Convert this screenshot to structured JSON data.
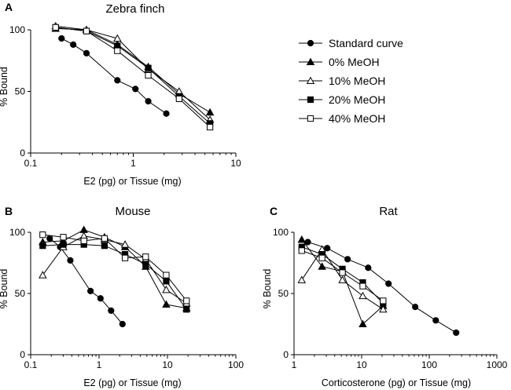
{
  "legend": [
    {
      "label": "Standard curve",
      "marker": "filled-circle"
    },
    {
      "label": "0% MeOH",
      "marker": "filled-triangle"
    },
    {
      "label": "10% MeOH",
      "marker": "open-triangle"
    },
    {
      "label": "20% MeOH",
      "marker": "filled-square"
    },
    {
      "label": "40% MeOH",
      "marker": "open-square"
    }
  ],
  "chart_data": [
    {
      "id": "A",
      "letter": "A",
      "type": "scatter",
      "xscale": "log",
      "title": "Zebra finch",
      "xlabel": "E2 (pg) or Tissue (mg)",
      "ylabel": "% Bound",
      "xlim": [
        0.1,
        10
      ],
      "ylim": [
        0,
        100
      ],
      "xticks": [
        {
          "v": 0.1,
          "label": "0.1"
        },
        {
          "v": 1,
          "label": "1"
        },
        {
          "v": 10,
          "label": "10"
        }
      ],
      "yticks": [
        {
          "v": 0,
          "label": "0"
        },
        {
          "v": 50,
          "label": "50"
        },
        {
          "v": 100,
          "label": "100"
        }
      ],
      "series": [
        {
          "name": "Standard curve",
          "marker": "filled-circle",
          "x": [
            0.2,
            0.26,
            0.35,
            0.7,
            1.05,
            1.4,
            2.1
          ],
          "y": [
            93,
            88,
            81,
            59,
            52,
            42,
            32
          ]
        },
        {
          "name": "0% MeOH",
          "marker": "filled-triangle",
          "x": [
            0.175,
            0.35,
            0.7,
            1.4,
            2.8,
            5.6
          ],
          "y": [
            101,
            100,
            88,
            70,
            48,
            33
          ]
        },
        {
          "name": "10% MeOH",
          "marker": "open-triangle",
          "x": [
            0.175,
            0.35,
            0.7,
            1.4,
            2.8,
            5.6
          ],
          "y": [
            103,
            100,
            93,
            68,
            50,
            27
          ]
        },
        {
          "name": "20% MeOH",
          "marker": "filled-square",
          "x": [
            0.175,
            0.35,
            0.7,
            1.4,
            2.8,
            5.6
          ],
          "y": [
            102,
            99,
            87,
            69,
            46,
            24
          ]
        },
        {
          "name": "40% MeOH",
          "marker": "open-square",
          "x": [
            0.175,
            0.35,
            0.7,
            1.4,
            2.8,
            5.6
          ],
          "y": [
            102,
            99,
            83,
            63,
            44,
            21
          ]
        }
      ]
    },
    {
      "id": "B",
      "letter": "B",
      "type": "scatter",
      "xscale": "log",
      "title": "Mouse",
      "xlabel": "E2 (pg) or Tissue (mg)",
      "ylabel": "% Bound",
      "xlim": [
        0.1,
        100
      ],
      "ylim": [
        0,
        100
      ],
      "xticks": [
        {
          "v": 0.1,
          "label": "0.1"
        },
        {
          "v": 1,
          "label": "1"
        },
        {
          "v": 10,
          "label": "10"
        },
        {
          "v": 100,
          "label": "100"
        }
      ],
      "yticks": [
        {
          "v": 0,
          "label": "0"
        },
        {
          "v": 50,
          "label": "50"
        },
        {
          "v": 100,
          "label": "100"
        }
      ],
      "series": [
        {
          "name": "Standard curve",
          "marker": "filled-circle",
          "x": [
            0.19,
            0.27,
            0.38,
            0.75,
            1.05,
            1.5,
            2.2
          ],
          "y": [
            95,
            88,
            77,
            52,
            46,
            36,
            25
          ]
        },
        {
          "name": "0% MeOH",
          "marker": "filled-triangle",
          "x": [
            0.15,
            0.3,
            0.6,
            1.2,
            2.4,
            4.8,
            9.6,
            19
          ],
          "y": [
            92,
            93,
            102,
            96,
            88,
            72,
            41,
            38
          ]
        },
        {
          "name": "10% MeOH",
          "marker": "open-triangle",
          "x": [
            0.15,
            0.3,
            0.6,
            1.2,
            2.4,
            4.8,
            9.6,
            19
          ],
          "y": [
            65,
            88,
            97,
            94,
            90,
            78,
            53,
            42
          ]
        },
        {
          "name": "20% MeOH",
          "marker": "filled-square",
          "x": [
            0.15,
            0.3,
            0.6,
            1.2,
            2.4,
            4.8,
            9.6,
            19
          ],
          "y": [
            89,
            90,
            90,
            89,
            82,
            74,
            60,
            37
          ]
        },
        {
          "name": "40% MeOH",
          "marker": "open-square",
          "x": [
            0.15,
            0.3,
            0.6,
            1.2,
            2.4,
            4.8,
            9.6,
            19
          ],
          "y": [
            98,
            96,
            93,
            95,
            79,
            80,
            65,
            44
          ]
        }
      ]
    },
    {
      "id": "C",
      "letter": "C",
      "type": "scatter",
      "xscale": "log",
      "title": "Rat",
      "xlabel": "Corticosterone (pg) or Tissue (mg)",
      "ylabel": "% Bound",
      "xlim": [
        1,
        1000
      ],
      "ylim": [
        0,
        100
      ],
      "xticks": [
        {
          "v": 1,
          "label": "1"
        },
        {
          "v": 10,
          "label": "10"
        },
        {
          "v": 100,
          "label": "100"
        },
        {
          "v": 1000,
          "label": "1000"
        }
      ],
      "yticks": [
        {
          "v": 0,
          "label": "0"
        },
        {
          "v": 50,
          "label": "50"
        },
        {
          "v": 100,
          "label": "100"
        }
      ],
      "series": [
        {
          "name": "Standard curve",
          "marker": "filled-circle",
          "x": [
            1.6,
            3.1,
            6.2,
            12.5,
            25,
            62,
            125,
            250
          ],
          "y": [
            92,
            87,
            78,
            71,
            58,
            39,
            28,
            18
          ]
        },
        {
          "name": "0% MeOH",
          "marker": "filled-triangle",
          "x": [
            1.3,
            2.6,
            5.2,
            10.4,
            20.8
          ],
          "y": [
            94,
            72,
            68,
            25,
            40
          ]
        },
        {
          "name": "10% MeOH",
          "marker": "open-triangle",
          "x": [
            1.3,
            2.6,
            5.2,
            10.4,
            20.8
          ],
          "y": [
            61,
            86,
            61,
            48,
            37
          ]
        },
        {
          "name": "20% MeOH",
          "marker": "filled-square",
          "x": [
            1.3,
            2.6,
            5.2,
            10.4,
            20.8
          ],
          "y": [
            88,
            82,
            70,
            59,
            42
          ]
        },
        {
          "name": "40% MeOH",
          "marker": "open-square",
          "x": [
            1.3,
            2.6,
            5.2,
            10.4,
            20.8
          ],
          "y": [
            85,
            79,
            67,
            56,
            44
          ]
        }
      ]
    }
  ]
}
